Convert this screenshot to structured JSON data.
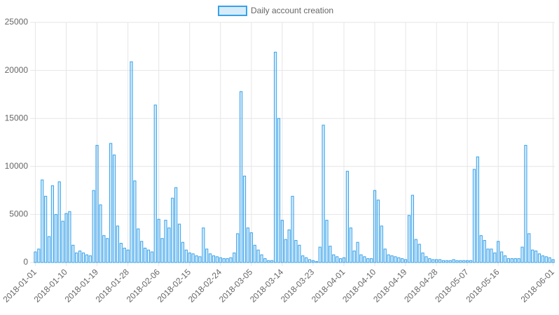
{
  "chart_data": {
    "type": "bar",
    "categories": [
      "2018-01-01",
      null,
      null,
      null,
      null,
      null,
      null,
      null,
      null,
      "2018-01-10",
      null,
      null,
      null,
      null,
      null,
      null,
      null,
      null,
      "2018-01-19",
      null,
      null,
      null,
      null,
      null,
      null,
      null,
      null,
      "2018-01-28",
      null,
      null,
      null,
      null,
      null,
      null,
      null,
      null,
      "2018-02-06",
      null,
      null,
      null,
      null,
      null,
      null,
      null,
      null,
      "2018-02-15",
      null,
      null,
      null,
      null,
      null,
      null,
      null,
      null,
      "2018-02-24",
      null,
      null,
      null,
      null,
      null,
      null,
      null,
      null,
      "2018-03-05",
      null,
      null,
      null,
      null,
      null,
      null,
      null,
      null,
      "2018-03-14",
      null,
      null,
      null,
      null,
      null,
      null,
      null,
      null,
      "2018-03-23",
      null,
      null,
      null,
      null,
      null,
      null,
      null,
      null,
      "2018-04-01",
      null,
      null,
      null,
      null,
      null,
      null,
      null,
      null,
      "2018-04-10",
      null,
      null,
      null,
      null,
      null,
      null,
      null,
      null,
      "2018-04-19",
      null,
      null,
      null,
      null,
      null,
      null,
      null,
      null,
      "2018-04-28",
      null,
      null,
      null,
      null,
      null,
      null,
      null,
      null,
      "2018-05-07",
      null,
      null,
      null,
      null,
      null,
      null,
      null,
      null,
      "2018-05-16",
      null,
      null,
      null,
      null,
      null,
      null,
      null,
      null,
      null,
      null,
      null,
      null,
      null,
      null,
      null,
      "2018-06-01"
    ],
    "series": [
      {
        "name": "Daily account creation",
        "color": "#36a2eb",
        "values": [
          1100,
          1400,
          8600,
          6900,
          2700,
          8000,
          5000,
          8400,
          4300,
          5100,
          5300,
          1800,
          1000,
          1200,
          1000,
          800,
          700,
          7500,
          12200,
          6000,
          2800,
          2500,
          12400,
          11200,
          3800,
          2000,
          1500,
          1300,
          20900,
          8500,
          3500,
          2200,
          1500,
          1300,
          1100,
          16400,
          4500,
          2500,
          4400,
          3600,
          6700,
          7800,
          4000,
          2100,
          1300,
          1000,
          900,
          700,
          600,
          3600,
          1400,
          900,
          700,
          600,
          500,
          400,
          400,
          500,
          1000,
          3000,
          17800,
          9000,
          3600,
          3100,
          1800,
          1300,
          800,
          400,
          200,
          200,
          21900,
          15000,
          4400,
          2400,
          3400,
          6900,
          2300,
          1800,
          700,
          500,
          300,
          200,
          100,
          1600,
          14300,
          4400,
          1700,
          800,
          600,
          400,
          500,
          9500,
          3600,
          1200,
          2100,
          800,
          600,
          400,
          400,
          7500,
          6500,
          3800,
          1400,
          800,
          700,
          600,
          500,
          400,
          300,
          4900,
          7000,
          2400,
          1900,
          1000,
          600,
          400,
          300,
          300,
          300,
          200,
          200,
          200,
          300,
          200,
          200,
          200,
          200,
          200,
          9700,
          11000,
          2800,
          2300,
          1400,
          1400,
          1000,
          2200,
          1100,
          700,
          400,
          400,
          400,
          400,
          1600,
          12200,
          3000,
          1300,
          1200,
          900,
          700,
          600,
          500,
          300
        ]
      }
    ],
    "ylim": [
      0,
      25000
    ],
    "yticks": [
      0,
      5000,
      10000,
      15000,
      20000,
      25000
    ],
    "grid": true,
    "legend": "top"
  }
}
